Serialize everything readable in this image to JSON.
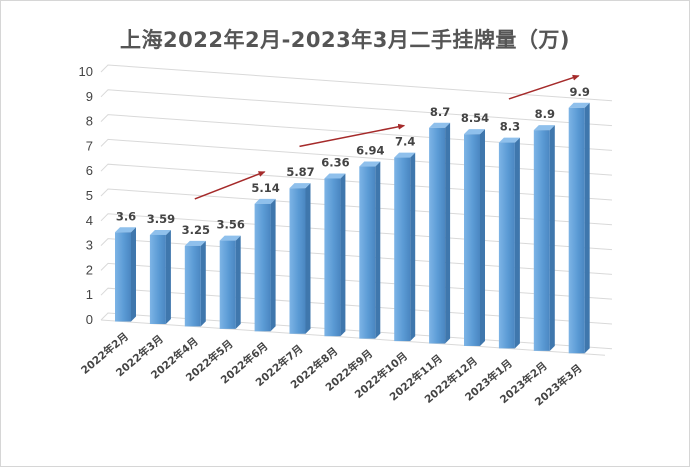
{
  "chart_data": {
    "type": "bar",
    "title": "上海2022年2月-2023年3月二手挂牌量（万)",
    "xlabel": "",
    "ylabel": "",
    "ylim": [
      0,
      10
    ],
    "yticks": [
      "0",
      "1",
      "2",
      "3",
      "4",
      "5",
      "6",
      "7",
      "8",
      "9",
      "10"
    ],
    "categories": [
      "2022年2月",
      "2022年3月",
      "2022年4月",
      "2022年5月",
      "2022年6月",
      "2022年7月",
      "2022年8月",
      "2022年9月",
      "2022年10月",
      "2022年11月",
      "2022年12月",
      "2023年1月",
      "2023年2月",
      "2023年3月"
    ],
    "values": [
      3.6,
      3.59,
      3.25,
      3.56,
      5.14,
      5.87,
      6.36,
      6.94,
      7.4,
      8.7,
      8.54,
      8.3,
      8.9,
      9.9
    ],
    "data_labels": [
      "3.6",
      "3.59",
      "3.25",
      "3.56",
      "5.14",
      "5.87",
      "6.36",
      "6.94",
      "7.4",
      "8.7",
      "8.54",
      "8.3",
      "8.9",
      "9.9"
    ],
    "grid": true,
    "three_d": true,
    "bar_color": "#5B9BD5",
    "trend_arrow_color": "#A52A2A",
    "trend_arrows": [
      {
        "from": "2022年4月",
        "to": "2022年6月"
      },
      {
        "from": "2022年7月",
        "to": "2022年10月"
      },
      {
        "from": "2023年1月",
        "to": "2023年3月"
      }
    ]
  }
}
